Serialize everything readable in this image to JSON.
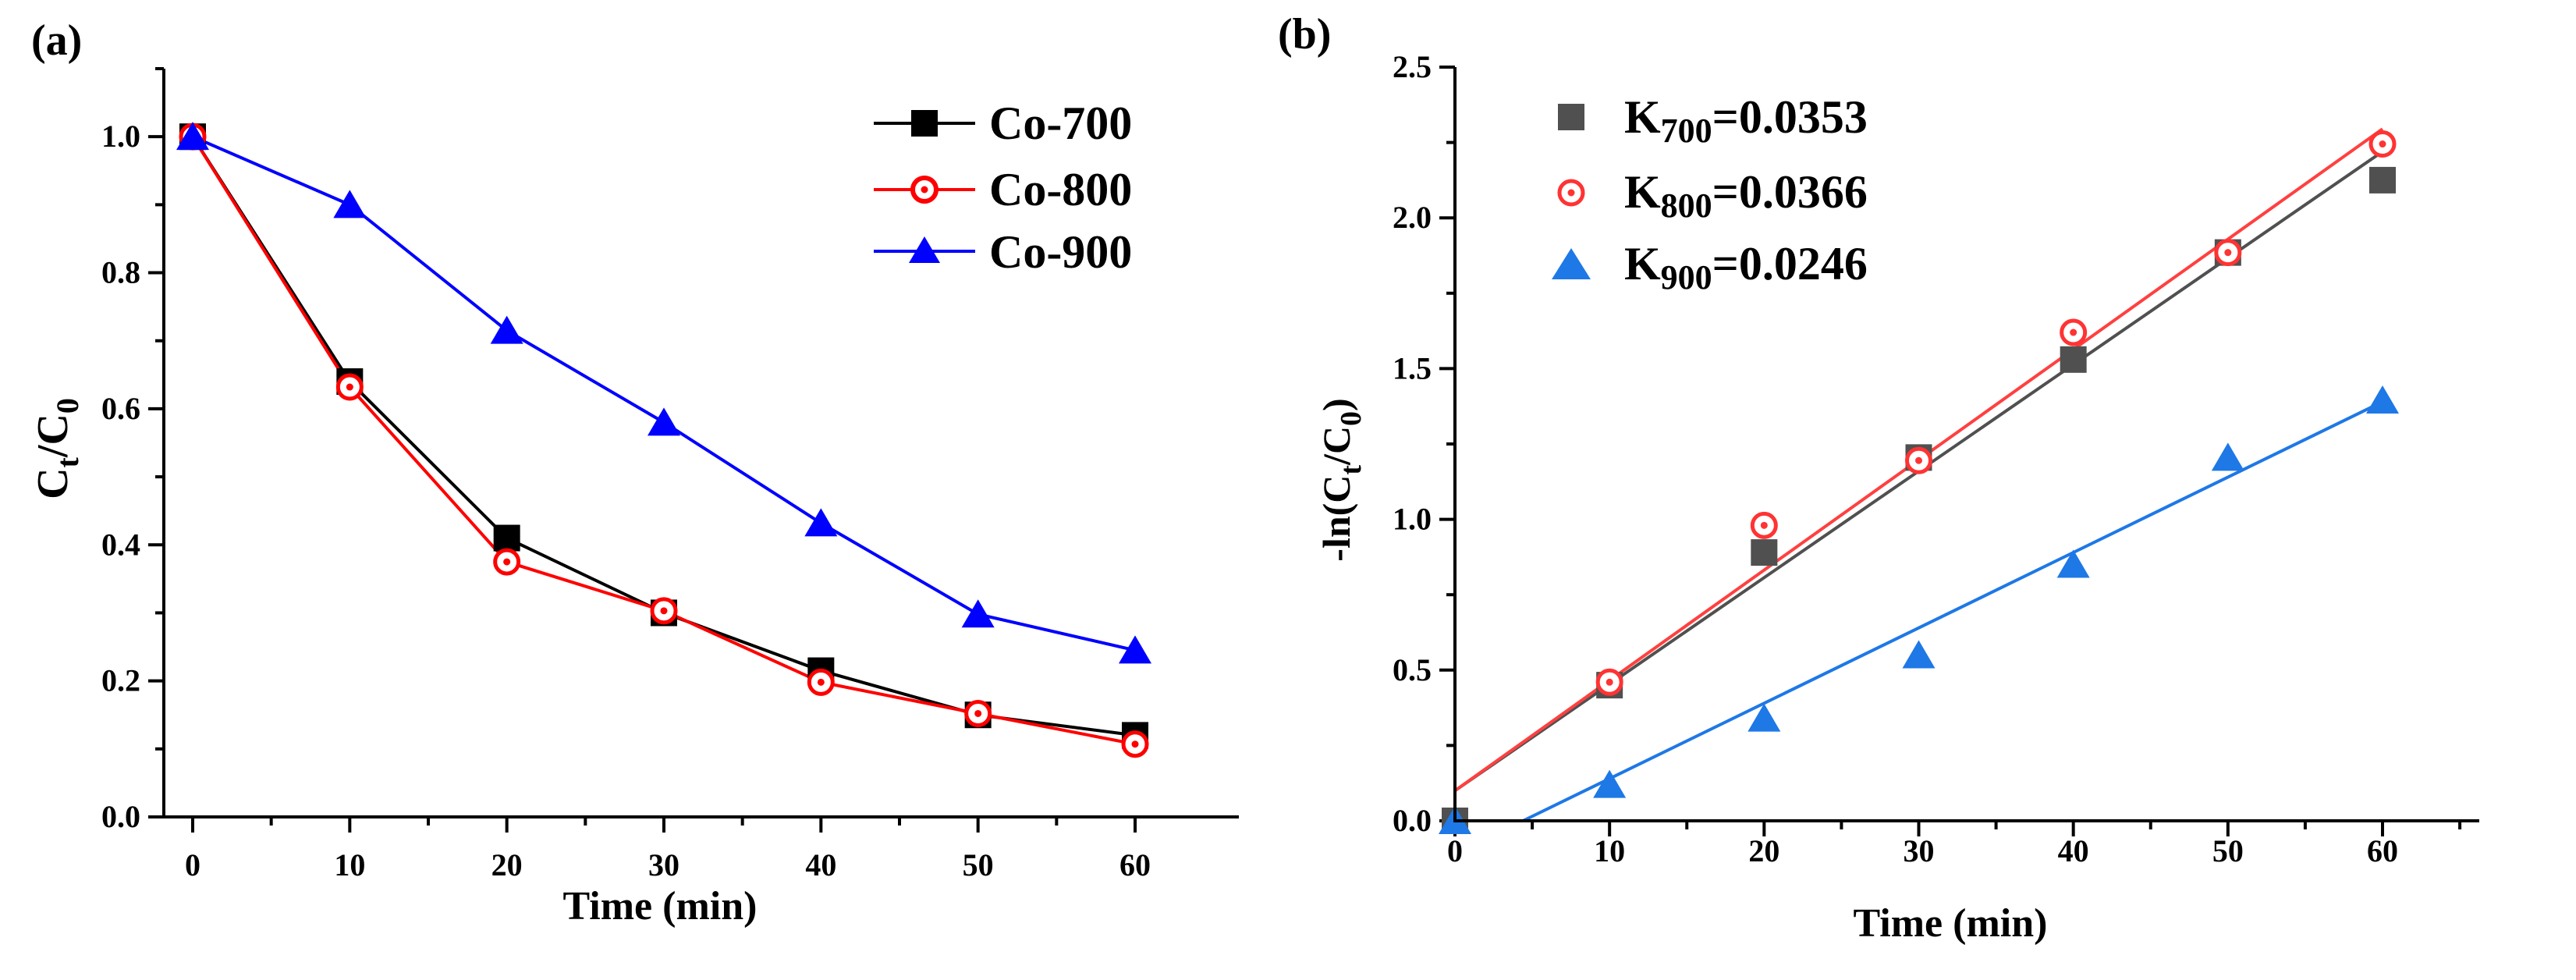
{
  "chart_data": [
    {
      "type": "line",
      "panel_label": "(a)",
      "title": "",
      "xlabel": "Time (min)",
      "ylabel_main": "C",
      "ylabel_sub1": "t",
      "ylabel_mid": "/C",
      "ylabel_sub2": "0",
      "x": [
        0,
        10,
        20,
        30,
        40,
        50,
        60
      ],
      "xlim": [
        -3,
        65
      ],
      "ylim": [
        0,
        1.1
      ],
      "x_ticks": [
        0,
        10,
        20,
        30,
        40,
        50,
        60
      ],
      "x_tick_labels": [
        "0",
        "10",
        "20",
        "30",
        "40",
        "50",
        "60"
      ],
      "y_ticks": [
        0,
        0.2,
        0.4,
        0.6,
        0.8,
        1.0
      ],
      "y_tick_labels": [
        "0.0",
        "0.2",
        "0.4",
        "0.6",
        "0.8",
        "1.0"
      ],
      "legend_position": "top-right",
      "series": [
        {
          "name": "Co-700",
          "label": "Co-700",
          "color": "#000000",
          "marker": "square",
          "values": [
            1.0,
            0.64,
            0.41,
            0.3,
            0.215,
            0.15,
            0.12
          ]
        },
        {
          "name": "Co-800",
          "label": "Co-800",
          "color": "#ff0000",
          "marker": "circle-dot",
          "values": [
            1.0,
            0.632,
            0.375,
            0.303,
            0.198,
            0.152,
            0.107
          ]
        },
        {
          "name": "Co-900",
          "label": "Co-900",
          "color": "#0000ff",
          "marker": "triangle",
          "values": [
            1.0,
            0.9,
            0.715,
            0.58,
            0.432,
            0.298,
            0.245
          ]
        }
      ]
    },
    {
      "type": "scatter",
      "panel_label": "(b)",
      "title": "",
      "xlabel": "Time (min)",
      "ylabel_pre": "-ln(C",
      "ylabel_sub1": "t",
      "ylabel_mid": "/C",
      "ylabel_sub2": "0",
      "ylabel_post": ")",
      "xlim": [
        0,
        65
      ],
      "ylim": [
        0,
        2.5
      ],
      "x_ticks": [
        0,
        10,
        20,
        30,
        40,
        50,
        60
      ],
      "x_tick_labels": [
        "0",
        "10",
        "20",
        "30",
        "40",
        "50",
        "60"
      ],
      "y_ticks": [
        0,
        0.5,
        1.0,
        1.5,
        2.0,
        2.5
      ],
      "y_tick_labels": [
        "0.0",
        "0.5",
        "1.0",
        "1.5",
        "2.0",
        "2.5"
      ],
      "legend_position": "top-left",
      "series": [
        {
          "name": "K700",
          "label_k": "K",
          "label_sub": "700",
          "label_val": "=0.0353",
          "color": "#505050",
          "fit_color": "#505050",
          "marker": "square",
          "x": [
            0,
            10,
            20,
            30,
            40,
            50,
            60
          ],
          "values": [
            0.0,
            0.45,
            0.89,
            1.205,
            1.53,
            1.885,
            2.125
          ],
          "fit": [
            0.1,
            2.22
          ]
        },
        {
          "name": "K800",
          "label_k": "K",
          "label_sub": "800",
          "label_val": "=0.0366",
          "color": "#ff3333",
          "fit_color": "#ff4040",
          "marker": "circle-dot",
          "x": [
            10,
            20,
            30,
            40,
            50,
            60
          ],
          "values": [
            0.46,
            0.98,
            1.195,
            1.62,
            1.885,
            2.245
          ],
          "fit": [
            0.1,
            2.295
          ]
        },
        {
          "name": "K900",
          "label_k": "K",
          "label_sub": "900",
          "label_val": "=0.0246",
          "color": "#1e78e6",
          "fit_color": "#1e78e6",
          "marker": "triangle",
          "x": [
            0,
            10,
            20,
            30,
            40,
            50,
            60
          ],
          "values": [
            0.0,
            0.12,
            0.34,
            0.55,
            0.85,
            1.205,
            1.395
          ],
          "fit": [
            -0.11,
            1.39
          ]
        }
      ]
    }
  ]
}
